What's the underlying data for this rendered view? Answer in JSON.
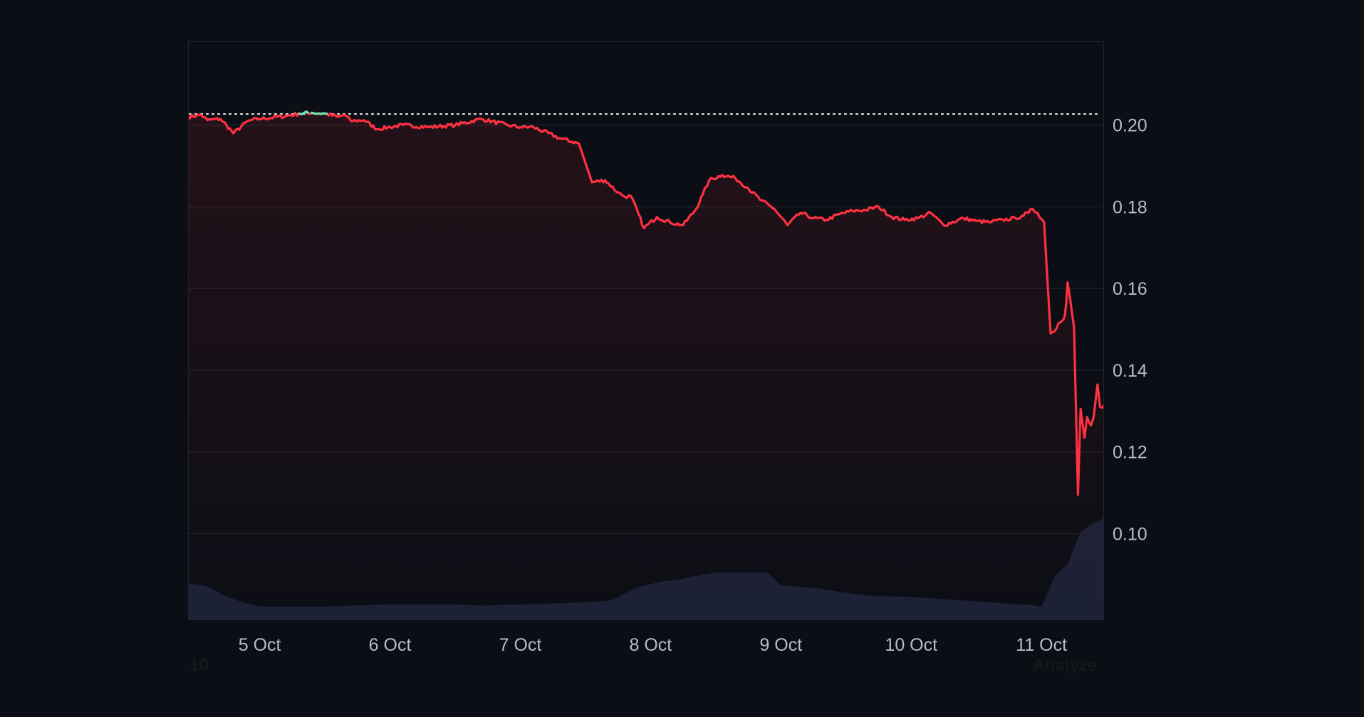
{
  "chart_data": {
    "type": "line",
    "title": "",
    "xlabel": "",
    "ylabel": "",
    "x_tick_labels": [
      "5 Oct",
      "6 Oct",
      "7 Oct",
      "8 Oct",
      "9 Oct",
      "10 Oct",
      "11 Oct"
    ],
    "x_ticks_day": [
      5.0,
      6.0,
      7.0,
      8.0,
      9.0,
      10.0,
      11.0
    ],
    "xlim_day": [
      4.45,
      11.48
    ],
    "y_ticks": [
      "0.20",
      "0.18",
      "0.16",
      "0.14",
      "0.12",
      "0.10"
    ],
    "ylim": [
      0.079,
      0.2205
    ],
    "reference_line": 0.2027,
    "grid": true,
    "colors": {
      "background": "#0c0e15",
      "line_below": "#ff3040",
      "line_above": "#6fe3b4",
      "grid": "#1e2029",
      "reference": "#dcdcdc",
      "volume": "#1c2135",
      "tick_text": "#b9bcc5"
    },
    "series": [
      {
        "x_day": [
          4.45,
          4.55,
          4.6,
          4.7,
          4.8,
          4.9,
          4.93,
          5.0,
          5.2,
          5.3,
          5.4,
          5.5,
          5.6,
          5.65,
          5.7,
          5.8,
          5.9,
          6.0,
          6.1,
          6.3,
          6.5,
          6.7,
          6.9,
          7.0,
          7.1,
          7.3,
          7.45,
          7.55,
          7.65,
          7.75,
          7.8,
          7.85,
          7.95,
          8.05,
          8.15,
          8.25,
          8.35,
          8.4,
          8.45,
          8.55,
          8.65,
          8.75,
          8.85,
          8.95,
          9.05,
          9.15,
          9.25,
          9.35,
          9.45,
          9.55,
          9.65,
          9.75,
          9.85,
          9.95,
          10.05,
          10.15,
          10.25,
          10.4,
          10.5,
          10.6,
          10.7,
          10.8,
          10.85,
          10.9,
          10.93,
          10.97,
          11.02,
          11.07,
          11.1,
          11.13,
          11.15,
          11.17,
          11.18,
          11.19,
          11.2,
          11.22,
          11.25,
          11.28,
          11.3,
          11.33,
          11.35,
          11.38,
          11.4,
          11.43,
          11.45,
          11.48
        ],
        "y": [
          0.202,
          0.2025,
          0.2012,
          0.2015,
          0.198,
          0.2008,
          0.2012,
          0.2015,
          0.2022,
          0.2028,
          0.203,
          0.2028,
          0.202,
          0.2025,
          0.201,
          0.2012,
          0.199,
          0.1995,
          0.2,
          0.1995,
          0.2,
          0.2015,
          0.2,
          0.1995,
          0.1995,
          0.1968,
          0.1955,
          0.186,
          0.1865,
          0.1835,
          0.1825,
          0.1826,
          0.1748,
          0.1775,
          0.1762,
          0.1755,
          0.1795,
          0.183,
          0.1865,
          0.1878,
          0.187,
          0.1845,
          0.1815,
          0.1795,
          0.1755,
          0.1785,
          0.1772,
          0.1768,
          0.1782,
          0.179,
          0.1792,
          0.18,
          0.1775,
          0.1768,
          0.1772,
          0.1785,
          0.1755,
          0.1772,
          0.1765,
          0.1762,
          0.1768,
          0.1772,
          0.1778,
          0.1785,
          0.1795,
          0.1785,
          0.1762,
          0.149,
          0.1495,
          0.1515,
          0.1518,
          0.1525,
          0.1535,
          0.1565,
          0.1615,
          0.1575,
          0.1505,
          0.1095,
          0.1305,
          0.1235,
          0.1285,
          0.1265,
          0.1285,
          0.1365,
          0.131,
          0.1315
        ]
      }
    ],
    "volume": {
      "x_day": [
        4.45,
        4.6,
        4.7,
        4.8,
        4.9,
        5.0,
        5.5,
        5.7,
        6.0,
        6.5,
        6.7,
        7.0,
        7.5,
        7.7,
        7.9,
        8.1,
        8.2,
        8.4,
        8.5,
        8.9,
        9.0,
        9.3,
        9.5,
        9.7,
        10.0,
        10.5,
        10.8,
        10.9,
        11.0,
        11.1,
        11.2,
        11.3,
        11.4,
        11.48
      ],
      "level": [
        0.34,
        0.31,
        0.24,
        0.19,
        0.15,
        0.12,
        0.12,
        0.13,
        0.14,
        0.14,
        0.13,
        0.14,
        0.16,
        0.18,
        0.3,
        0.36,
        0.37,
        0.42,
        0.44,
        0.44,
        0.32,
        0.29,
        0.25,
        0.22,
        0.21,
        0.17,
        0.14,
        0.14,
        0.12,
        0.4,
        0.52,
        0.82,
        0.9,
        0.95
      ]
    }
  },
  "watermark": {
    "left_text": "10",
    "right_text": "Analyze"
  }
}
